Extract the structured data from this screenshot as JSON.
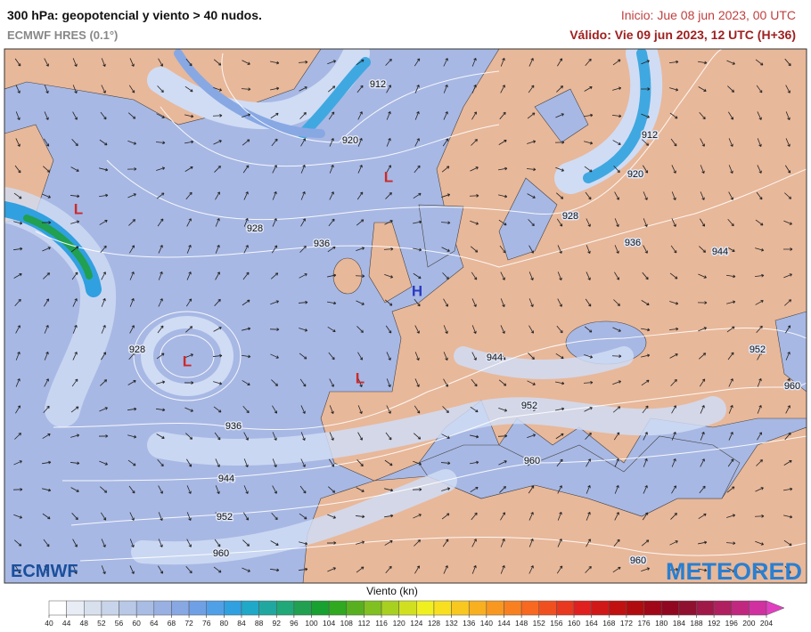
{
  "header": {
    "title": "300 hPa: geopotencial y viento > 40 nudos.",
    "model": "ECMWF HRES (0.1°)",
    "init": "Inicio: Jue 08 jun 2023, 00 UTC",
    "valid": "Válido: Vie 09 jun 2023, 12 UTC (H+36)"
  },
  "map": {
    "contour_labels": [
      "912",
      "920",
      "912",
      "920",
      "928",
      "936",
      "928",
      "928",
      "936",
      "944",
      "944",
      "952",
      "960",
      "952",
      "960",
      "936",
      "944",
      "952",
      "960",
      "960"
    ],
    "pressure_centers": [
      {
        "label": "L",
        "color": "#cc2a2a"
      },
      {
        "label": "L",
        "color": "#cc2a2a"
      },
      {
        "label": "L",
        "color": "#cc2a2a"
      },
      {
        "label": "L",
        "color": "#cc2a2a"
      },
      {
        "label": "H",
        "color": "#2a3cc0"
      }
    ]
  },
  "logos": {
    "left": "ECMWF",
    "right": "METEORED"
  },
  "colorbar": {
    "label": "Viento (kn)",
    "ticks": [
      40,
      44,
      48,
      52,
      56,
      60,
      64,
      68,
      72,
      76,
      80,
      84,
      88,
      92,
      96,
      100,
      104,
      108,
      112,
      116,
      120,
      124,
      128,
      132,
      136,
      140,
      144,
      148,
      152,
      156,
      160,
      164,
      168,
      172,
      176,
      180,
      184,
      188,
      192,
      196,
      200,
      204
    ],
    "colors": [
      "#ffffff",
      "#e8ecf4",
      "#d8e0ee",
      "#c8d4ea",
      "#b8c8e6",
      "#a8bce4",
      "#98b0e2",
      "#88a8e4",
      "#6fa0e6",
      "#50a0e8",
      "#30a0e0",
      "#20a8c8",
      "#20a8a0",
      "#20a878",
      "#20a050",
      "#18a030",
      "#30a820",
      "#58b020",
      "#80c020",
      "#a8d020",
      "#d0e020",
      "#f0f020",
      "#f8e020",
      "#f8c820",
      "#f8b020",
      "#f89820",
      "#f88020",
      "#f86820",
      "#f05020",
      "#e83820",
      "#e02020",
      "#d01818",
      "#c01010",
      "#b00c10",
      "#a00818",
      "#900820",
      "#901030",
      "#a01848",
      "#b02060",
      "#c02880",
      "#d030a0"
    ],
    "over_color": "#e040c0"
  }
}
